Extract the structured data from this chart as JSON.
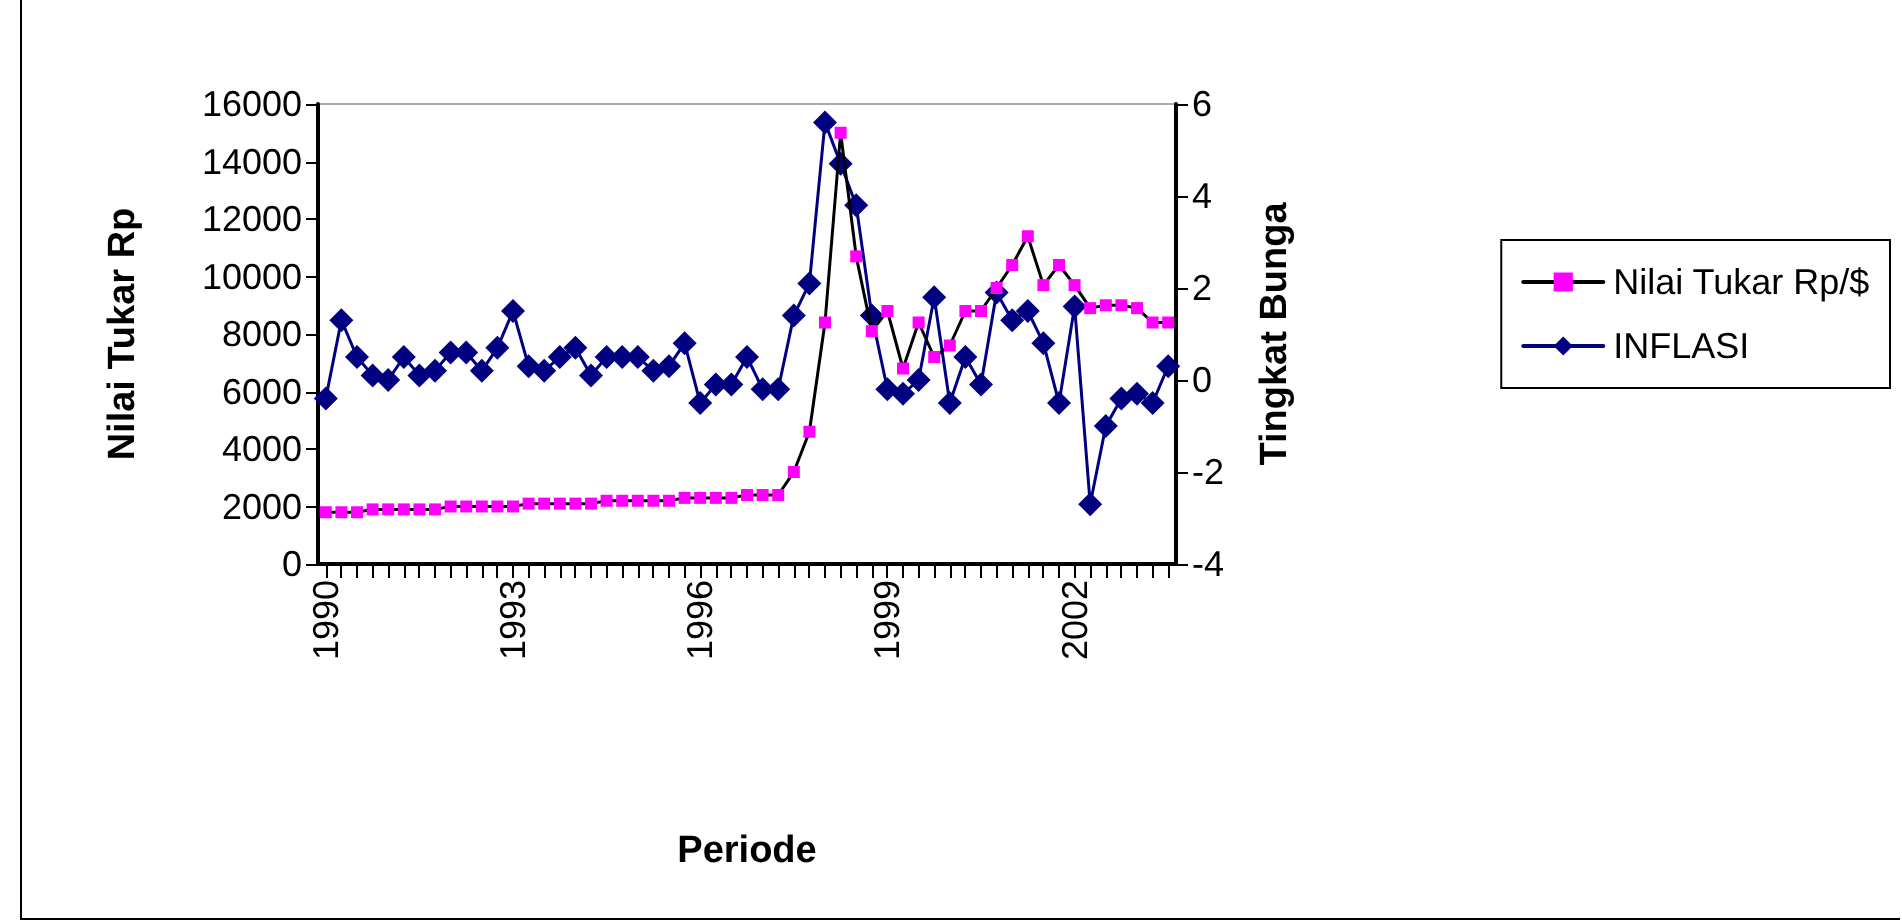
{
  "chart_data": {
    "type": "line",
    "xlabel": "Periode",
    "ylabel": "Nilai Tukar Rp",
    "y2label": "Tingkat Bunga",
    "categories": [
      "1990",
      null,
      null,
      null,
      null,
      null,
      null,
      null,
      null,
      null,
      null,
      null,
      "1993",
      null,
      null,
      null,
      null,
      null,
      null,
      null,
      null,
      null,
      null,
      null,
      "1996",
      null,
      null,
      null,
      null,
      null,
      null,
      null,
      null,
      null,
      null,
      null,
      "1999",
      null,
      null,
      null,
      null,
      null,
      null,
      null,
      null,
      null,
      null,
      null,
      "2002",
      null,
      null,
      null,
      null,
      null,
      null
    ],
    "series": [
      {
        "name": "Nilai Tukar Rp/$",
        "color": "#ff00ff",
        "marker": "square",
        "values": [
          1800,
          1800,
          1800,
          1900,
          1900,
          1900,
          1900,
          1900,
          2000,
          2000,
          2000,
          2000,
          2000,
          2100,
          2100,
          2100,
          2100,
          2100,
          2200,
          2200,
          2200,
          2200,
          2200,
          2300,
          2300,
          2300,
          2300,
          2400,
          2400,
          2400,
          3200,
          4600,
          8400,
          15000,
          10700,
          8100,
          8800,
          6800,
          8400,
          7200,
          7600,
          8800,
          8800,
          9600,
          10400,
          11400,
          9700,
          10400,
          9700,
          8900,
          9000,
          9000,
          8900,
          8400,
          8400
        ]
      },
      {
        "name": "INFLASI",
        "color": "#000080",
        "marker": "diamond",
        "axis": "y2",
        "values": [
          -0.4,
          1.3,
          0.5,
          0.1,
          0.0,
          0.5,
          0.1,
          0.2,
          0.6,
          0.6,
          0.2,
          0.7,
          1.5,
          0.3,
          0.2,
          0.5,
          0.7,
          0.1,
          0.5,
          0.5,
          0.5,
          0.2,
          0.3,
          0.8,
          -0.5,
          -0.1,
          -0.1,
          0.5,
          -0.2,
          -0.2,
          1.4,
          2.1,
          5.6,
          4.7,
          3.8,
          1.4,
          -0.2,
          -0.3,
          0.0,
          1.8,
          -0.5,
          0.5,
          -0.1,
          1.9,
          1.3,
          1.5,
          0.8,
          -0.5,
          1.6,
          -2.7,
          -1.0,
          -0.4,
          -0.3,
          -0.5,
          0.3
        ]
      }
    ],
    "ylim": [
      0,
      16000
    ],
    "yticks": [
      0,
      2000,
      4000,
      6000,
      8000,
      10000,
      12000,
      14000,
      16000
    ],
    "y2lim": [
      -4,
      6
    ],
    "y2ticks": [
      -4,
      -2,
      0,
      2,
      4,
      6
    ],
    "grid": false,
    "legend": "right"
  }
}
